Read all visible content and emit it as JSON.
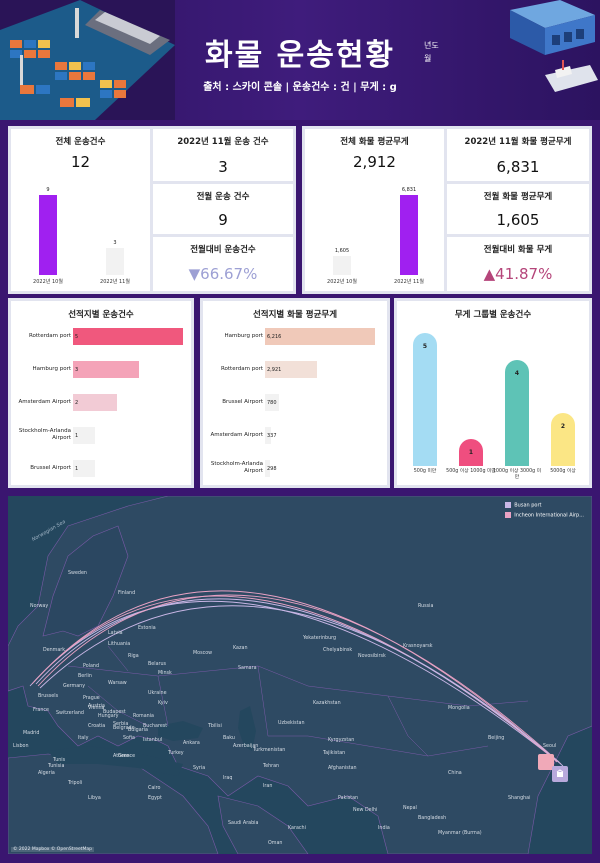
{
  "header": {
    "title": "화물 운송현황",
    "subtitle": "출처 : 스카이 콘솔 | 운송건수 : 건 | 무게 : g",
    "filter_year_label": "년도",
    "filter_month_label": "월"
  },
  "kpi_left": {
    "total_title": "전체 운송건수",
    "total_value": "12",
    "nov_title": "2022년 11월 운송 건수",
    "nov_value": "3",
    "prev_title": "전월 운송 건수",
    "prev_value": "9",
    "delta_title": "전월대비 운송건수",
    "delta_value": "▼66.67%",
    "mini_chart": {
      "categories": [
        "2022년 10월",
        "2022년 11월"
      ],
      "values": [
        9,
        3
      ],
      "value_labels": [
        "9",
        "3"
      ]
    }
  },
  "kpi_right": {
    "total_title": "전체 화물 평균무게",
    "total_value": "2,912",
    "nov_title": "2022년 11월 화물 평균무게",
    "nov_value": "6,831",
    "prev_title": "전월 화물 평균무게",
    "prev_value": "1,605",
    "delta_title": "전월대비 화물 무게",
    "delta_value": "▲41.87%",
    "mini_chart": {
      "categories": [
        "2022년 10월",
        "2022년 11월"
      ],
      "values": [
        1605,
        6831
      ],
      "value_labels": [
        "1,605",
        "6,831"
      ]
    }
  },
  "charts": {
    "shipments_by_origin": {
      "title": "선적지별 운송건수",
      "type": "bar",
      "categories": [
        "Rotterdam port",
        "Hamburg port",
        "Amsterdam Airport",
        "Stockholm-Arlanda Airport",
        "Brussel Airport"
      ],
      "values": [
        5,
        3,
        2,
        1,
        1
      ],
      "colors": [
        "#f0587d",
        "#f4a3b8",
        "#f2cbd5",
        "#f2f2f2",
        "#f2f2f2"
      ]
    },
    "avg_weight_by_origin": {
      "title": "선적지별 화물 평균무게",
      "type": "bar",
      "categories": [
        "Hamburg port",
        "Rotterdam port",
        "Brussel Airport",
        "Amsterdam Airport",
        "Stockholm-Arlanda Airport"
      ],
      "values": [
        6216,
        2921,
        780,
        337,
        298
      ],
      "value_labels": [
        "6,216",
        "2,921",
        "780",
        "337",
        "298"
      ],
      "colors": [
        "#f0c9b9",
        "#f2e0d8",
        "#f2f2f2",
        "#f2f2f2",
        "#f2f2f2"
      ]
    },
    "shipments_by_weight_group": {
      "title": "무게 그룹별 운송건수",
      "type": "bar",
      "categories": [
        "500g 미만",
        "500g 이상 1000g 미만",
        "1000g 이상 3000g 미만",
        "5000g 이상"
      ],
      "values": [
        5,
        1,
        4,
        2
      ],
      "colors": [
        "#a4dcf3",
        "#ef4e7f",
        "#5ec3b6",
        "#fbe685"
      ]
    }
  },
  "map": {
    "legend": [
      {
        "label": "Busan port",
        "color": "#c9b7e6"
      },
      {
        "label": "Incheon International Airp...",
        "color": "#e9a2c4"
      }
    ],
    "credit": "© 2022 Mapbox © OpenStreetMap",
    "sea_labels": [
      "Norwegian Sea"
    ],
    "labels": [
      "Sweden",
      "Finland",
      "Norway",
      "Denmark",
      "Latvia",
      "Lithuania",
      "Belarus",
      "Poland",
      "Germany",
      "Berlin",
      "Brussels",
      "France",
      "Switzerland",
      "Austria",
      "Hungary",
      "Romania",
      "Ukraine",
      "Croatia",
      "Serbia",
      "Italy",
      "Bulgaria",
      "Istanbul",
      "Greece",
      "Turkey",
      "Algeria",
      "Tunisia",
      "Libya",
      "Egypt",
      "Cairo",
      "Syria",
      "Iraq",
      "Iran",
      "Saudi Arabia",
      "Oman",
      "Moscow",
      "Kazan",
      "Samara",
      "Russia",
      "Yekaterinburg",
      "Chelyabinsk",
      "Novosibirsk",
      "Krasnoyarsk",
      "Kazakhstan",
      "Uzbekistan",
      "Turkmenistan",
      "Kyrgyzstan",
      "Tajikistan",
      "Afghanistan",
      "Pakistan",
      "New Delhi",
      "India",
      "Nepal",
      "Bangladesh",
      "Myanmar (Burma)",
      "Mongolia",
      "China",
      "Beijing",
      "Shanghai",
      "Seoul",
      "Baku",
      "Tbilisi",
      "Karachi",
      "Madrid",
      "Lisbon",
      "Ankara",
      "Tehran",
      "Azerbaijan",
      "Estonia",
      "Riga",
      "Minsk",
      "Kyiv",
      "Warsaw",
      "Prague",
      "Vienna",
      "Budapest",
      "Belgrade",
      "Bucharest",
      "Sofia",
      "Athens",
      "Tunis",
      "Tripoli"
    ]
  }
}
